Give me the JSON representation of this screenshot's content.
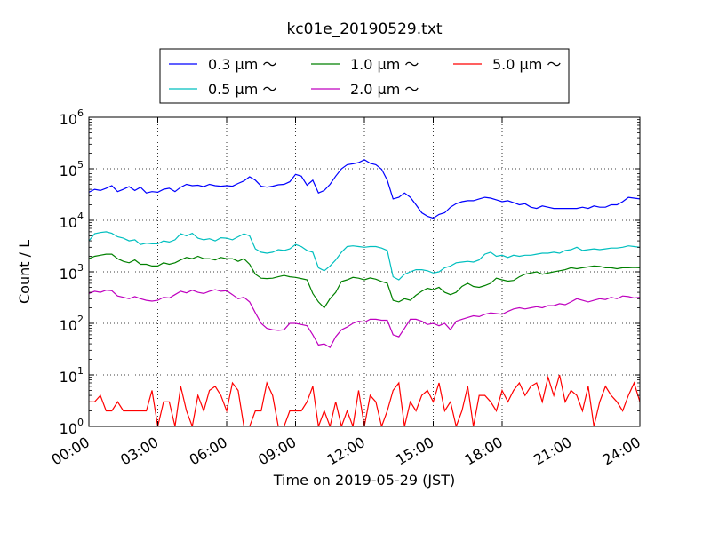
{
  "chart_data": {
    "type": "line",
    "title": "kc01e_20190529.txt",
    "xlabel": "Time on 2019-05-29 (JST)",
    "ylabel": "Count / L",
    "yscale": "log",
    "ylim": [
      1,
      1000000
    ],
    "xlim": [
      "00:00",
      "24:00"
    ],
    "x_ticks": [
      "00:00",
      "03:00",
      "06:00",
      "09:00",
      "12:00",
      "15:00",
      "18:00",
      "21:00",
      "24:00"
    ],
    "y_ticks": [
      {
        "base": "10",
        "exp": "0"
      },
      {
        "base": "10",
        "exp": "1"
      },
      {
        "base": "10",
        "exp": "2"
      },
      {
        "base": "10",
        "exp": "3"
      },
      {
        "base": "10",
        "exp": "4"
      },
      {
        "base": "10",
        "exp": "5"
      },
      {
        "base": "10",
        "exp": "6"
      }
    ],
    "grid": true,
    "legend_placement": "top-center",
    "x_hours": [
      0,
      0.25,
      0.5,
      0.75,
      1,
      1.25,
      1.5,
      1.75,
      2,
      2.25,
      2.5,
      2.75,
      3,
      3.25,
      3.5,
      3.75,
      4,
      4.25,
      4.5,
      4.75,
      5,
      5.25,
      5.5,
      5.75,
      6,
      6.25,
      6.5,
      6.75,
      7,
      7.25,
      7.5,
      7.75,
      8,
      8.25,
      8.5,
      8.75,
      9,
      9.25,
      9.5,
      9.75,
      10,
      10.25,
      10.5,
      10.75,
      11,
      11.25,
      11.5,
      11.75,
      12,
      12.25,
      12.5,
      12.75,
      13,
      13.25,
      13.5,
      13.75,
      14,
      14.25,
      14.5,
      14.75,
      15,
      15.25,
      15.5,
      15.75,
      16,
      16.25,
      16.5,
      16.75,
      17,
      17.25,
      17.5,
      17.75,
      18,
      18.25,
      18.5,
      18.75,
      19,
      19.25,
      19.5,
      19.75,
      20,
      20.25,
      20.5,
      20.75,
      21,
      21.25,
      21.5,
      21.75,
      22,
      22.25,
      22.5,
      22.75,
      23,
      23.25,
      23.5,
      23.75,
      24
    ],
    "series": [
      {
        "name": "0.3 μm ～",
        "color": "#0000ff",
        "values": [
          35000,
          40000,
          38000,
          42000,
          47000,
          36000,
          40000,
          45000,
          38000,
          44000,
          34000,
          36000,
          35000,
          40000,
          42000,
          36000,
          44000,
          50000,
          47000,
          48000,
          45000,
          50000,
          47000,
          46000,
          47000,
          46000,
          52000,
          58000,
          70000,
          60000,
          46000,
          44000,
          46000,
          49000,
          50000,
          56000,
          78000,
          72000,
          48000,
          60000,
          34000,
          38000,
          50000,
          72000,
          100000,
          120000,
          125000,
          132000,
          150000,
          128000,
          120000,
          98000,
          60000,
          26000,
          28000,
          34000,
          28000,
          20000,
          14000,
          12000,
          11000,
          13000,
          14000,
          18000,
          21000,
          23000,
          24000,
          24000,
          26000,
          28000,
          27000,
          25000,
          23000,
          24000,
          22000,
          20000,
          21000,
          18000,
          17000,
          19000,
          18000,
          17000,
          17000,
          17000,
          17000,
          17000,
          18000,
          17000,
          19000,
          18000,
          18000,
          20000,
          20000,
          23000,
          28000,
          27000,
          26000
        ]
      },
      {
        "name": "0.5 μm ～",
        "color": "#00bfbf",
        "values": [
          4000,
          5500,
          5800,
          6000,
          5600,
          4800,
          4500,
          4000,
          4200,
          3400,
          3600,
          3500,
          3500,
          4000,
          3800,
          4200,
          5500,
          5000,
          5600,
          4500,
          4200,
          4400,
          4000,
          4600,
          4500,
          4200,
          4800,
          5500,
          5000,
          2800,
          2400,
          2300,
          2400,
          2700,
          2600,
          2800,
          3400,
          3100,
          2600,
          2400,
          1200,
          1050,
          1300,
          1700,
          2400,
          3100,
          3200,
          3100,
          3000,
          3100,
          3100,
          2900,
          2600,
          800,
          700,
          900,
          1000,
          1100,
          1100,
          1050,
          950,
          1000,
          1200,
          1300,
          1500,
          1550,
          1600,
          1550,
          1700,
          2200,
          2400,
          2000,
          2100,
          1900,
          2100,
          2000,
          2100,
          2100,
          2200,
          2300,
          2300,
          2400,
          2300,
          2600,
          2700,
          3000,
          2600,
          2700,
          2800,
          2700,
          2800,
          2900,
          2900,
          3000,
          3200,
          3100,
          3000
        ]
      },
      {
        "name": "1.0 μm ～",
        "color": "#008000",
        "values": [
          1800,
          2000,
          2100,
          2200,
          2200,
          1800,
          1600,
          1500,
          1700,
          1400,
          1400,
          1300,
          1300,
          1500,
          1400,
          1500,
          1700,
          1900,
          1800,
          2000,
          1800,
          1800,
          1700,
          1900,
          1800,
          1800,
          1600,
          1800,
          1400,
          900,
          750,
          740,
          750,
          800,
          850,
          800,
          780,
          740,
          700,
          380,
          260,
          200,
          300,
          400,
          650,
          700,
          780,
          750,
          700,
          760,
          720,
          650,
          600,
          280,
          260,
          300,
          280,
          350,
          420,
          480,
          450,
          500,
          400,
          360,
          400,
          520,
          600,
          520,
          500,
          540,
          600,
          750,
          700,
          660,
          680,
          800,
          900,
          950,
          1000,
          900,
          950,
          1000,
          1050,
          1100,
          1200,
          1150,
          1200,
          1250,
          1300,
          1280,
          1200,
          1200,
          1150,
          1200,
          1200,
          1220,
          1200
        ]
      },
      {
        "name": "2.0 μm ～",
        "color": "#bf00bf",
        "values": [
          380,
          420,
          400,
          440,
          430,
          340,
          320,
          300,
          330,
          300,
          280,
          270,
          280,
          320,
          310,
          360,
          420,
          390,
          440,
          400,
          380,
          420,
          450,
          420,
          430,
          360,
          300,
          320,
          260,
          160,
          100,
          80,
          75,
          73,
          75,
          100,
          100,
          95,
          90,
          60,
          38,
          40,
          34,
          55,
          75,
          85,
          100,
          110,
          105,
          120,
          120,
          115,
          115,
          60,
          55,
          80,
          120,
          120,
          110,
          95,
          100,
          90,
          100,
          75,
          110,
          120,
          130,
          140,
          135,
          150,
          160,
          155,
          150,
          170,
          190,
          200,
          190,
          200,
          210,
          200,
          220,
          220,
          240,
          230,
          260,
          300,
          280,
          260,
          280,
          300,
          290,
          320,
          300,
          340,
          330,
          310,
          320
        ]
      },
      {
        "name": "5.0 μm ～",
        "color": "#ff0000",
        "values": [
          3,
          3,
          4,
          2,
          2,
          3,
          2,
          2,
          2,
          2,
          2,
          5,
          1,
          3,
          3,
          1,
          6,
          2,
          1,
          4,
          2,
          5,
          6,
          4,
          2,
          7,
          5,
          1,
          1,
          2,
          2,
          7,
          4,
          1,
          1,
          2,
          2,
          2,
          3,
          6,
          1,
          2,
          1,
          3,
          1,
          2,
          1,
          5,
          1,
          4,
          3,
          1,
          2,
          5,
          7,
          1,
          3,
          2,
          4,
          5,
          3,
          7,
          2,
          3,
          1,
          2,
          6,
          1,
          4,
          4,
          3,
          2,
          5,
          3,
          5,
          7,
          4,
          6,
          7,
          3,
          9,
          4,
          10,
          3,
          5,
          4,
          2,
          6,
          1,
          3,
          6,
          4,
          3,
          2,
          4,
          7,
          3
        ]
      }
    ]
  }
}
